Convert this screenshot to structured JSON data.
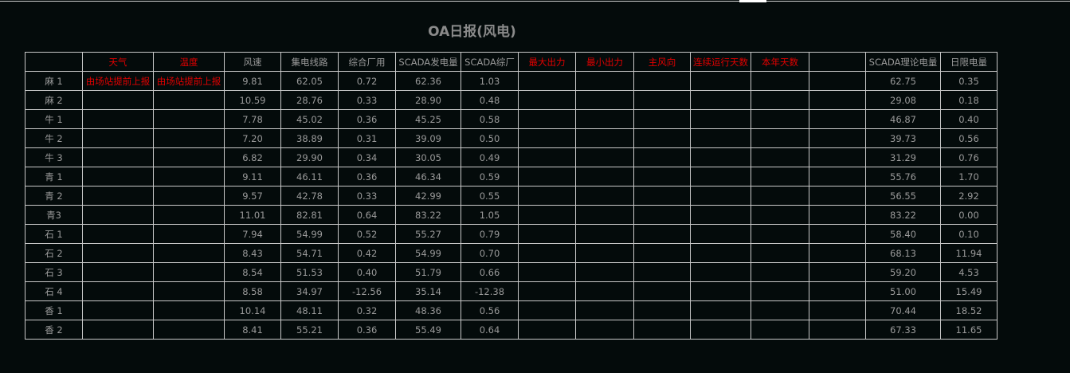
{
  "title": "OA日报(风电)",
  "colors": {
    "background": "#040b0b",
    "text": "#9a9a9a",
    "highlight": "#e00000",
    "grid": "#c8c8c8"
  },
  "headers": [
    {
      "label": "",
      "red": false
    },
    {
      "label": "天气",
      "red": true
    },
    {
      "label": "温度",
      "red": true
    },
    {
      "label": "风速",
      "red": false
    },
    {
      "label": "集电线路",
      "red": false
    },
    {
      "label": "综合厂用",
      "red": false
    },
    {
      "label": "SCADA发电量",
      "red": false
    },
    {
      "label": "SCADA综厂",
      "red": false
    },
    {
      "label": "最大出力",
      "red": true
    },
    {
      "label": "最小出力",
      "red": true
    },
    {
      "label": "主风向",
      "red": true
    },
    {
      "label": "连续运行天数",
      "red": true
    },
    {
      "label": "本年天数",
      "red": true
    },
    {
      "label": "",
      "red": false
    },
    {
      "label": "SCADA理论电量",
      "red": false
    },
    {
      "label": "日限电量",
      "red": false
    }
  ],
  "rows": [
    [
      "麻 1",
      "由场站提前上报",
      "由场站提前上报",
      "9.81",
      "62.05",
      "0.72",
      "62.36",
      "1.03",
      "",
      "",
      "",
      "",
      "",
      "",
      "62.75",
      "0.35"
    ],
    [
      "麻 2",
      "",
      "",
      "10.59",
      "28.76",
      "0.33",
      "28.90",
      "0.48",
      "",
      "",
      "",
      "",
      "",
      "",
      "29.08",
      "0.18"
    ],
    [
      "牛 1",
      "",
      "",
      "7.78",
      "45.02",
      "0.36",
      "45.25",
      "0.58",
      "",
      "",
      "",
      "",
      "",
      "",
      "46.87",
      "0.40"
    ],
    [
      "牛 2",
      "",
      "",
      "7.20",
      "38.89",
      "0.31",
      "39.09",
      "0.50",
      "",
      "",
      "",
      "",
      "",
      "",
      "39.73",
      "0.56"
    ],
    [
      "牛 3",
      "",
      "",
      "6.82",
      "29.90",
      "0.34",
      "30.05",
      "0.49",
      "",
      "",
      "",
      "",
      "",
      "",
      "31.29",
      "0.76"
    ],
    [
      "青 1",
      "",
      "",
      "9.11",
      "46.11",
      "0.36",
      "46.34",
      "0.59",
      "",
      "",
      "",
      "",
      "",
      "",
      "55.76",
      "1.70"
    ],
    [
      "青 2",
      "",
      "",
      "9.57",
      "42.78",
      "0.33",
      "42.99",
      "0.55",
      "",
      "",
      "",
      "",
      "",
      "",
      "56.55",
      "2.92"
    ],
    [
      "青3",
      "",
      "",
      "11.01",
      "82.81",
      "0.64",
      "83.22",
      "1.05",
      "",
      "",
      "",
      "",
      "",
      "",
      "83.22",
      "0.00"
    ],
    [
      "石 1",
      "",
      "",
      "7.94",
      "54.99",
      "0.52",
      "55.27",
      "0.79",
      "",
      "",
      "",
      "",
      "",
      "",
      "58.40",
      "0.10"
    ],
    [
      "石 2",
      "",
      "",
      "8.43",
      "54.71",
      "0.42",
      "54.99",
      "0.70",
      "",
      "",
      "",
      "",
      "",
      "",
      "68.13",
      "11.94"
    ],
    [
      "石 3",
      "",
      "",
      "8.54",
      "51.53",
      "0.40",
      "51.79",
      "0.66",
      "",
      "",
      "",
      "",
      "",
      "",
      "59.20",
      "4.53"
    ],
    [
      "石 4",
      "",
      "",
      "8.58",
      "34.97",
      "-12.56",
      "35.14",
      "-12.38",
      "",
      "",
      "",
      "",
      "",
      "",
      "51.00",
      "15.49"
    ],
    [
      "香 1",
      "",
      "",
      "10.14",
      "48.11",
      "0.32",
      "48.36",
      "0.56",
      "",
      "",
      "",
      "",
      "",
      "",
      "70.44",
      "18.52"
    ],
    [
      "香 2",
      "",
      "",
      "8.41",
      "55.21",
      "0.36",
      "55.49",
      "0.64",
      "",
      "",
      "",
      "",
      "",
      "",
      "67.33",
      "11.65"
    ]
  ]
}
